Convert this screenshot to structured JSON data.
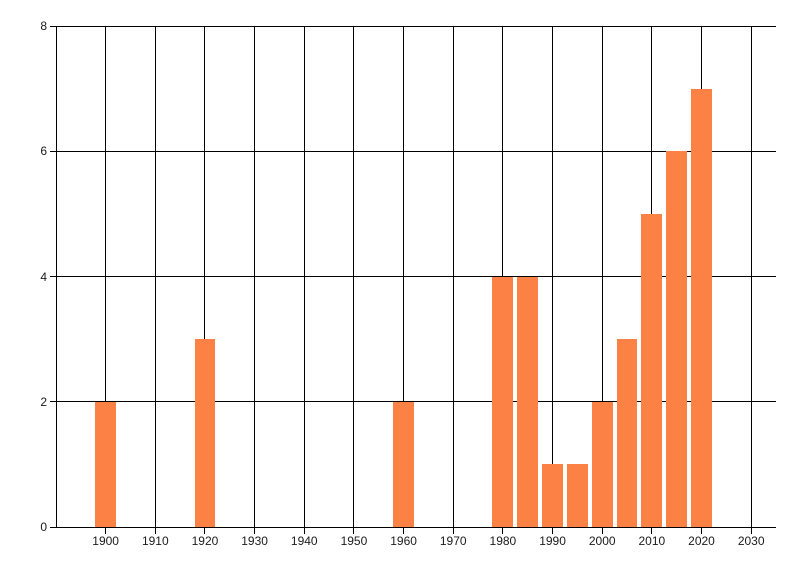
{
  "chart_data": {
    "type": "bar",
    "title": "",
    "xlabel": "",
    "ylabel": "",
    "x": [
      1900,
      1920,
      1960,
      1980,
      1985,
      1990,
      1995,
      2000,
      2005,
      2010,
      2015,
      2020
    ],
    "values": [
      2,
      3,
      2,
      4,
      4,
      1,
      1,
      2,
      3,
      5,
      6,
      7
    ],
    "xlim": [
      1890,
      2035
    ],
    "ylim": [
      0,
      8
    ],
    "x_ticks": [
      1900,
      1910,
      1920,
      1930,
      1940,
      1950,
      1960,
      1970,
      1980,
      1990,
      2000,
      2010,
      2020,
      2030
    ],
    "x_tick_labels": [
      "1900",
      "1910",
      "1920",
      "1930",
      "1940",
      "1950",
      "1960",
      "1970",
      "1980",
      "1990",
      "2000",
      "2010",
      "2020",
      "2030"
    ],
    "y_ticks": [
      0,
      2,
      4,
      6,
      8
    ],
    "y_tick_labels": [
      "0",
      "2",
      "4",
      "6",
      "8"
    ],
    "grid": true,
    "legend": false,
    "bar_width_years": 4.2,
    "colors": {
      "bar": "#fc8144",
      "grid": "#000000",
      "axis": "#000000",
      "label": "#1b1b1b",
      "background": "#ffffff"
    }
  }
}
